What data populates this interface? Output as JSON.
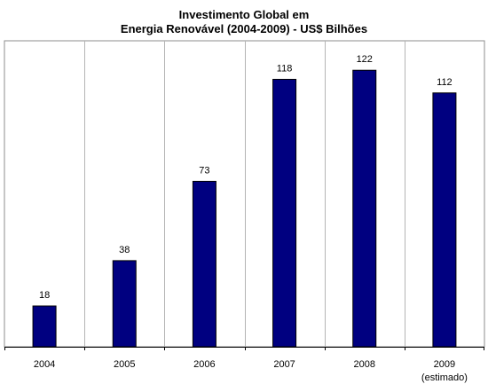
{
  "chart_data": {
    "type": "bar",
    "title_lines": [
      "Investimento Global em",
      "Energia Renovável (2004-2009) - US$ Bilhões"
    ],
    "categories": [
      "2004",
      "2005",
      "2006",
      "2007",
      "2008",
      "2009"
    ],
    "category_sublabels": [
      "",
      "",
      "",
      "",
      "",
      "(estimado)"
    ],
    "values": [
      18,
      38,
      73,
      118,
      122,
      112
    ],
    "ylim": [
      0,
      135
    ],
    "grid": "vertical category separators",
    "legend": "none",
    "bar_color": "#000080"
  }
}
